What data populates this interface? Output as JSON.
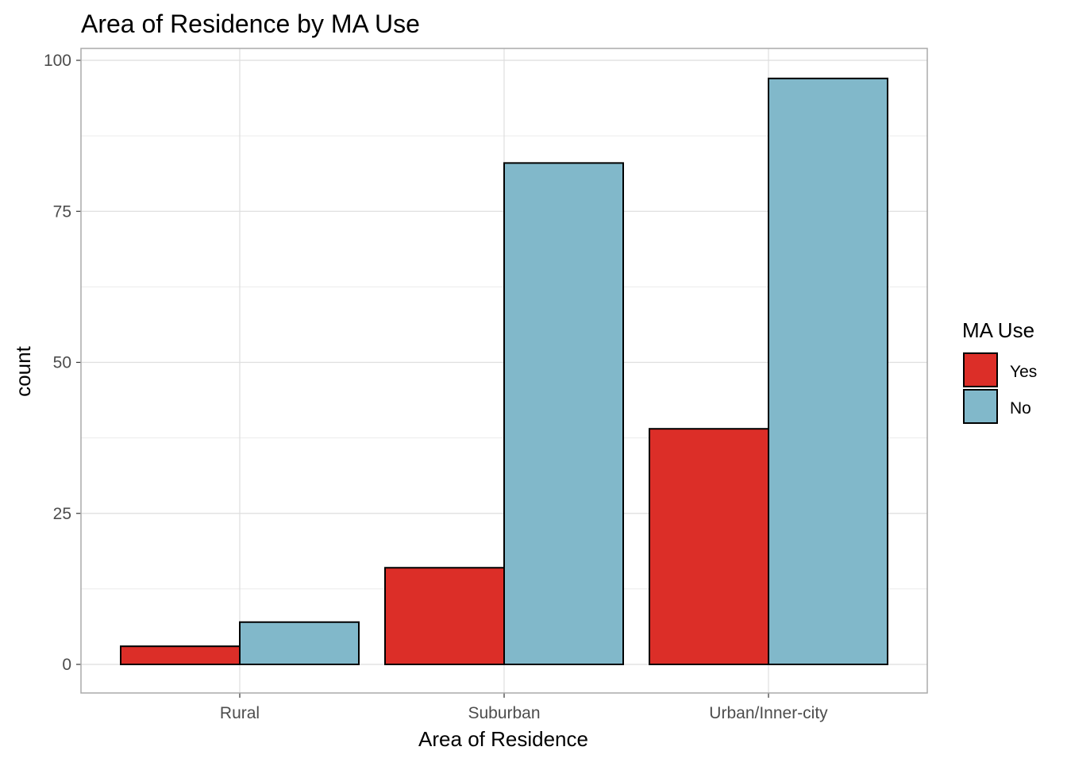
{
  "chart_data": {
    "type": "bar",
    "title": "Area of Residence by MA Use",
    "xlabel": "Area of Residence",
    "ylabel": "count",
    "categories": [
      "Rural",
      "Suburban",
      "Urban/Inner-city"
    ],
    "series": [
      {
        "name": "Yes",
        "values": [
          3,
          16,
          39
        ],
        "color": "#DC2E28"
      },
      {
        "name": "No",
        "values": [
          7,
          83,
          97
        ],
        "color": "#81B8CA"
      }
    ],
    "ylim": [
      0,
      100
    ],
    "yticks": [
      0,
      25,
      50,
      75,
      100
    ],
    "grid": true,
    "legend": {
      "title": "MA Use",
      "position": "right"
    }
  }
}
